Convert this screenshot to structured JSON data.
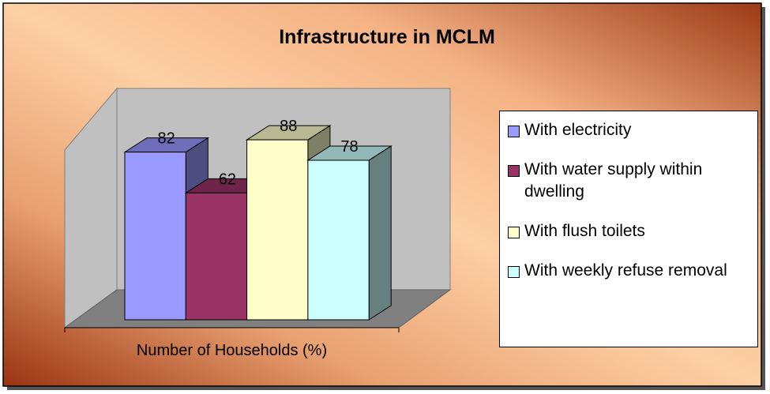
{
  "chart_data": {
    "type": "bar3d",
    "title": "Infrastructure in MCLM",
    "categories": [
      "Number of Households (%)"
    ],
    "series": [
      {
        "name": "With electricity",
        "color": "#9999ff",
        "values": [
          82
        ]
      },
      {
        "name": "With water supply within dwelling",
        "color": "#993366",
        "values": [
          62
        ]
      },
      {
        "name": "With flush toilets",
        "color": "#ffffcc",
        "values": [
          88
        ]
      },
      {
        "name": "With weekly refuse removal",
        "color": "#ccffff",
        "values": [
          78
        ]
      }
    ],
    "ylim": [
      0,
      100
    ],
    "legend": "right"
  }
}
